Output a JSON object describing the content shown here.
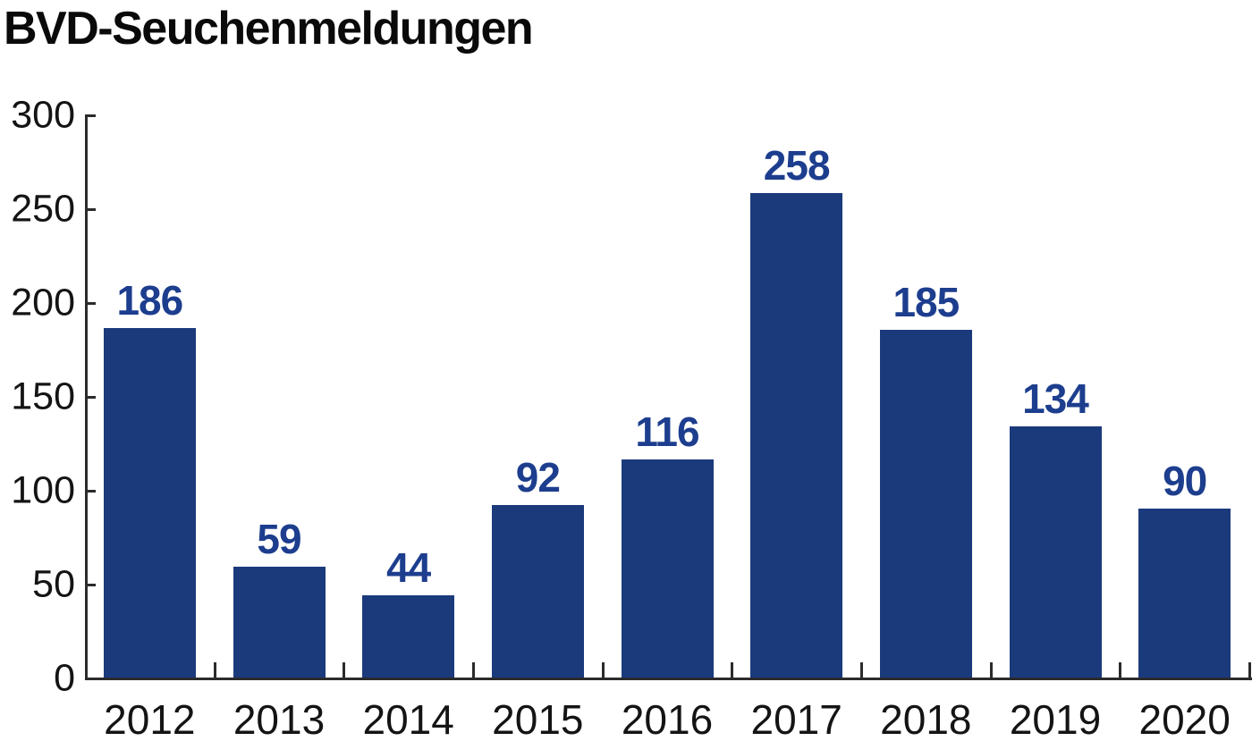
{
  "title": "BVD-Seuchenmeldungen",
  "chart_data": {
    "type": "bar",
    "title": "BVD-Seuchenmeldungen",
    "categories": [
      "2012",
      "2013",
      "2014",
      "2015",
      "2016",
      "2017",
      "2018",
      "2019",
      "2020"
    ],
    "values": [
      186,
      59,
      44,
      92,
      116,
      258,
      185,
      134,
      90
    ],
    "value_labels_shown": true,
    "xlabel": "",
    "ylabel": "",
    "ylim": [
      0,
      300
    ],
    "y_ticks": [
      0,
      50,
      100,
      150,
      200,
      250,
      300
    ],
    "grid": false,
    "legend": "none",
    "bar_color": "#1b3a7c",
    "value_label_color": "#1d3e8e",
    "axis_color": "#2b2b2b",
    "text_color": "#141414"
  }
}
